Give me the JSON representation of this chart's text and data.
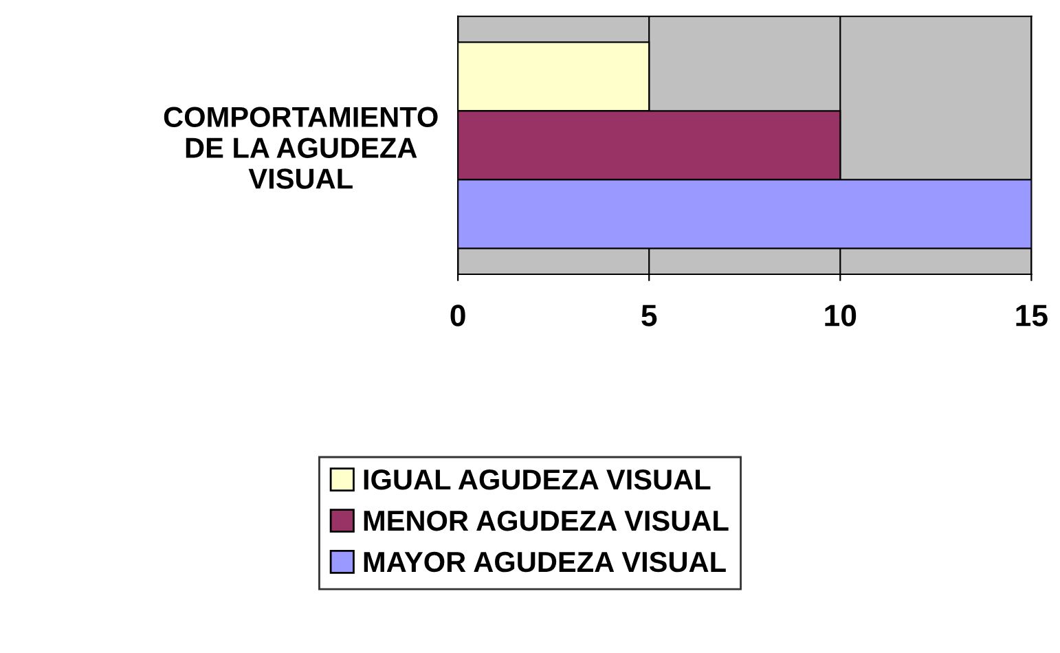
{
  "chart_data": {
    "type": "bar",
    "orientation": "horizontal",
    "categories": [
      "COMPORTAMIENTO\nDE LA AGUDEZA\nVISUAL"
    ],
    "series": [
      {
        "name": "IGUAL AGUDEZA VISUAL",
        "color": "#ffffcc",
        "values": [
          5
        ]
      },
      {
        "name": "MENOR AGUDEZA VISUAL",
        "color": "#993366",
        "values": [
          10
        ]
      },
      {
        "name": "MAYOR AGUDEZA VISUAL",
        "color": "#9999ff",
        "values": [
          15
        ]
      }
    ],
    "xlim": [
      0,
      15
    ],
    "xticks": [
      0,
      5,
      10,
      15
    ],
    "grid": "x",
    "legend": "bottom"
  }
}
